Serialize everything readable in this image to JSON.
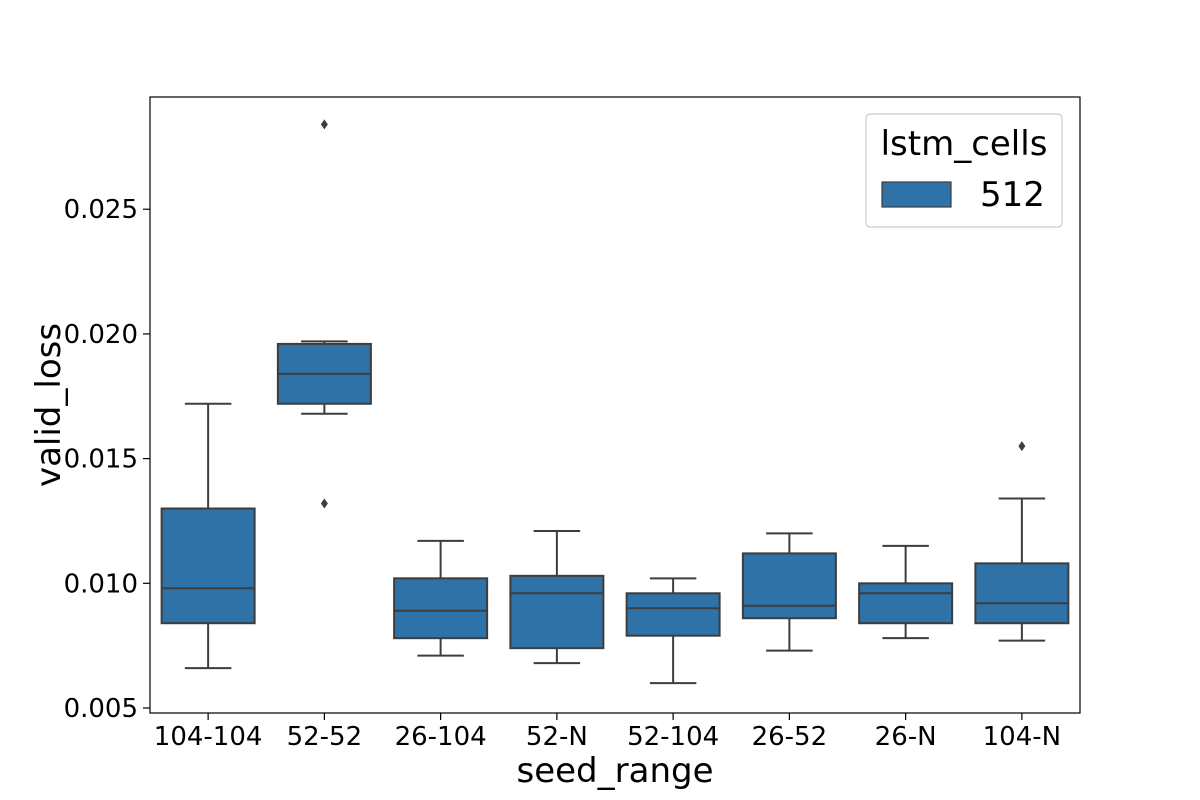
{
  "chart_data": {
    "type": "box",
    "xlabel": "seed_range",
    "ylabel": "valid_loss",
    "ylim": [
      0.0048,
      0.0295
    ],
    "yticks": [
      "0.005",
      "0.010",
      "0.015",
      "0.020",
      "0.025"
    ],
    "ytick_values": [
      0.005,
      0.01,
      0.015,
      0.02,
      0.025
    ],
    "grid": false,
    "legend": {
      "title": "lstm_cells",
      "placement": "top-right",
      "entries": [
        "512"
      ]
    },
    "categories": [
      "104-104",
      "52-52",
      "26-104",
      "52-N",
      "52-104",
      "26-52",
      "26-N",
      "104-N"
    ],
    "series": [
      {
        "name": "512",
        "color": "#2e72a8",
        "boxes": [
          {
            "whisker_low": 0.0066,
            "q1": 0.0084,
            "median": 0.0098,
            "q3": 0.013,
            "whisker_high": 0.0172,
            "outliers": []
          },
          {
            "whisker_low": 0.0168,
            "q1": 0.0172,
            "median": 0.0184,
            "q3": 0.0196,
            "whisker_high": 0.0197,
            "outliers": [
              0.0132,
              0.0284
            ]
          },
          {
            "whisker_low": 0.0071,
            "q1": 0.0078,
            "median": 0.0089,
            "q3": 0.0102,
            "whisker_high": 0.0117,
            "outliers": []
          },
          {
            "whisker_low": 0.0068,
            "q1": 0.0074,
            "median": 0.0096,
            "q3": 0.0103,
            "whisker_high": 0.0121,
            "outliers": []
          },
          {
            "whisker_low": 0.006,
            "q1": 0.0079,
            "median": 0.009,
            "q3": 0.0096,
            "whisker_high": 0.0102,
            "outliers": []
          },
          {
            "whisker_low": 0.0073,
            "q1": 0.0086,
            "median": 0.0091,
            "q3": 0.0112,
            "whisker_high": 0.012,
            "outliers": []
          },
          {
            "whisker_low": 0.0078,
            "q1": 0.0084,
            "median": 0.0096,
            "q3": 0.01,
            "whisker_high": 0.0115,
            "outliers": []
          },
          {
            "whisker_low": 0.0077,
            "q1": 0.0084,
            "median": 0.0092,
            "q3": 0.0108,
            "whisker_high": 0.0134,
            "outliers": [
              0.0155
            ]
          }
        ]
      }
    ]
  }
}
